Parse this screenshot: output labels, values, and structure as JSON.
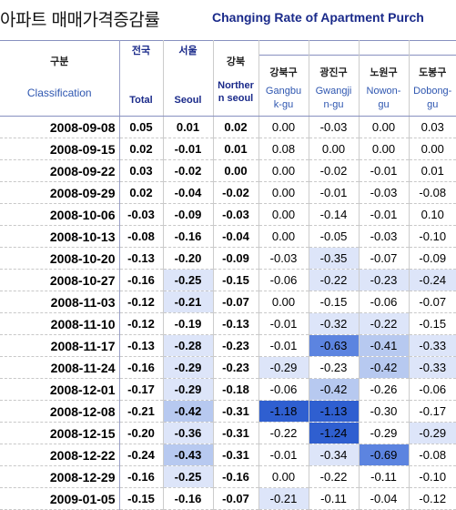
{
  "title_ko": "아파트 매매가격증감률",
  "title_en": "Changing Rate of Apartment Purch",
  "header": {
    "classification_ko": "구분",
    "classification_en": "Classification",
    "total_ko": "전국",
    "total_en": "Total",
    "seoul_ko": "서울",
    "seoul_en": "Seoul",
    "north_ko": "강북",
    "north_en_1": "Norther",
    "north_en_2": "n seoul",
    "districts": [
      {
        "ko": "강북구",
        "en1": "Gangbu",
        "en2": "k-gu"
      },
      {
        "ko": "광진구",
        "en1": "Gwangji",
        "en2": "n-gu"
      },
      {
        "ko": "노원구",
        "en1": "Nowon-",
        "en2": "gu"
      },
      {
        "ko": "도봉구",
        "en1": "Dobong-",
        "en2": "gu"
      }
    ]
  },
  "colors": {
    "light": "#dde5f9",
    "medium": "#b7c9f0",
    "strong": "#5c84e0",
    "deep": "#2f5fd0"
  },
  "rows": [
    {
      "date": "2008-09-08",
      "total": "0.05",
      "seoul": "0.01",
      "north": "0.02",
      "d": [
        "0.00",
        "-0.03",
        "0.00",
        "0.03"
      ],
      "s": [
        "",
        "",
        "",
        "",
        "",
        "",
        ""
      ]
    },
    {
      "date": "2008-09-15",
      "total": "0.02",
      "seoul": "-0.01",
      "north": "0.01",
      "d": [
        "0.08",
        "0.00",
        "0.00",
        "0.00"
      ],
      "s": [
        "",
        "",
        "",
        "",
        "",
        "",
        ""
      ]
    },
    {
      "date": "2008-09-22",
      "total": "0.03",
      "seoul": "-0.02",
      "north": "0.00",
      "d": [
        "0.00",
        "-0.02",
        "-0.01",
        "0.01"
      ],
      "s": [
        "",
        "",
        "",
        "",
        "",
        "",
        ""
      ]
    },
    {
      "date": "2008-09-29",
      "total": "0.02",
      "seoul": "-0.04",
      "north": "-0.02",
      "d": [
        "0.00",
        "-0.01",
        "-0.03",
        "-0.08"
      ],
      "s": [
        "",
        "",
        "",
        "",
        "",
        "",
        ""
      ]
    },
    {
      "date": "2008-10-06",
      "total": "-0.03",
      "seoul": "-0.09",
      "north": "-0.03",
      "d": [
        "0.00",
        "-0.14",
        "-0.01",
        "0.10"
      ],
      "s": [
        "",
        "",
        "",
        "",
        "",
        "",
        ""
      ]
    },
    {
      "date": "2008-10-13",
      "total": "-0.08",
      "seoul": "-0.16",
      "north": "-0.04",
      "d": [
        "0.00",
        "-0.05",
        "-0.03",
        "-0.10"
      ],
      "s": [
        "",
        "",
        "",
        "",
        "",
        "",
        ""
      ]
    },
    {
      "date": "2008-10-20",
      "total": "-0.13",
      "seoul": "-0.20",
      "north": "-0.09",
      "d": [
        "-0.03",
        "-0.35",
        "-0.07",
        "-0.09"
      ],
      "s": [
        "",
        "",
        "",
        "",
        "light",
        "",
        ""
      ]
    },
    {
      "date": "2008-10-27",
      "total": "-0.16",
      "seoul": "-0.25",
      "north": "-0.15",
      "d": [
        "-0.06",
        "-0.22",
        "-0.23",
        "-0.24"
      ],
      "s": [
        "",
        "light",
        "",
        "",
        "light",
        "light",
        "light"
      ]
    },
    {
      "date": "2008-11-03",
      "total": "-0.12",
      "seoul": "-0.21",
      "north": "-0.07",
      "d": [
        "0.00",
        "-0.15",
        "-0.06",
        "-0.07"
      ],
      "s": [
        "",
        "light",
        "",
        "",
        "",
        "",
        ""
      ]
    },
    {
      "date": "2008-11-10",
      "total": "-0.12",
      "seoul": "-0.19",
      "north": "-0.13",
      "d": [
        "-0.01",
        "-0.32",
        "-0.22",
        "-0.15"
      ],
      "s": [
        "",
        "",
        "",
        "",
        "light",
        "light",
        ""
      ]
    },
    {
      "date": "2008-11-17",
      "total": "-0.13",
      "seoul": "-0.28",
      "north": "-0.23",
      "d": [
        "-0.01",
        "-0.63",
        "-0.41",
        "-0.33"
      ],
      "s": [
        "",
        "light",
        "",
        "",
        "strong",
        "medium",
        "light"
      ]
    },
    {
      "date": "2008-11-24",
      "total": "-0.16",
      "seoul": "-0.29",
      "north": "-0.23",
      "d": [
        "-0.29",
        "-0.23",
        "-0.42",
        "-0.33"
      ],
      "s": [
        "",
        "light",
        "",
        "light",
        "",
        "medium",
        "light"
      ]
    },
    {
      "date": "2008-12-01",
      "total": "-0.17",
      "seoul": "-0.29",
      "north": "-0.18",
      "d": [
        "-0.06",
        "-0.42",
        "-0.26",
        "-0.06"
      ],
      "s": [
        "",
        "light",
        "",
        "",
        "medium",
        "",
        ""
      ]
    },
    {
      "date": "2008-12-08",
      "total": "-0.21",
      "seoul": "-0.42",
      "north": "-0.31",
      "d": [
        "-1.18",
        "-1.13",
        "-0.30",
        "-0.17"
      ],
      "s": [
        "",
        "medium",
        "",
        "deep",
        "deep",
        "",
        ""
      ]
    },
    {
      "date": "2008-12-15",
      "total": "-0.20",
      "seoul": "-0.36",
      "north": "-0.31",
      "d": [
        "-0.22",
        "-1.24",
        "-0.29",
        "-0.29"
      ],
      "s": [
        "",
        "light",
        "",
        "",
        "deep",
        "",
        "light"
      ]
    },
    {
      "date": "2008-12-22",
      "total": "-0.24",
      "seoul": "-0.43",
      "north": "-0.31",
      "d": [
        "-0.01",
        "-0.34",
        "-0.69",
        "-0.08"
      ],
      "s": [
        "",
        "medium",
        "",
        "",
        "light",
        "strong",
        ""
      ]
    },
    {
      "date": "2008-12-29",
      "total": "-0.16",
      "seoul": "-0.25",
      "north": "-0.16",
      "d": [
        "0.00",
        "-0.22",
        "-0.11",
        "-0.10"
      ],
      "s": [
        "",
        "light",
        "",
        "",
        "",
        "",
        ""
      ]
    },
    {
      "date": "2009-01-05",
      "total": "-0.15",
      "seoul": "-0.16",
      "north": "-0.07",
      "d": [
        "-0.21",
        "-0.11",
        "-0.04",
        "-0.12"
      ],
      "s": [
        "",
        "",
        "",
        "light",
        "",
        "",
        ""
      ]
    }
  ]
}
